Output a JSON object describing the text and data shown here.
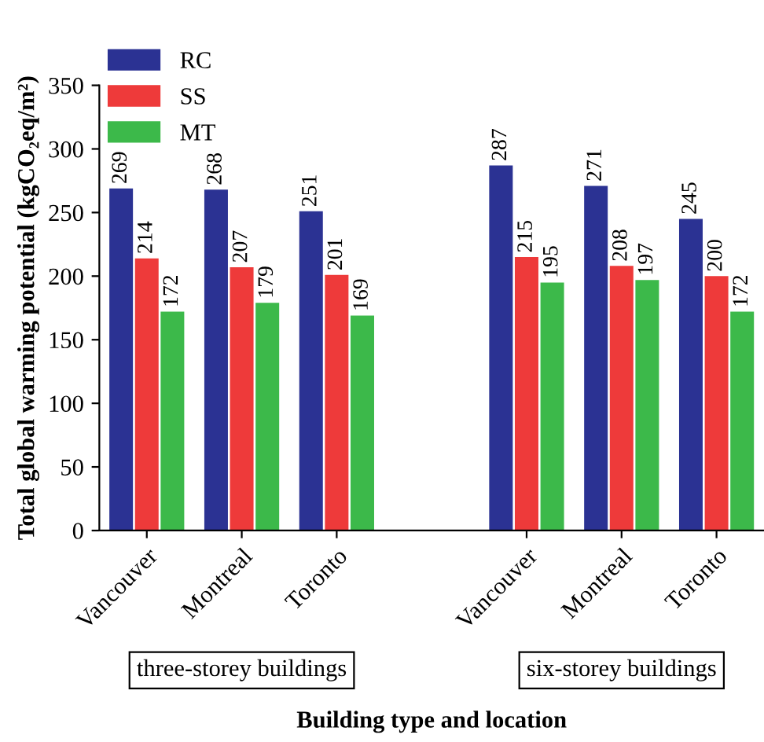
{
  "chart_data": {
    "type": "bar",
    "xlabel": "Building type and location",
    "ylabel": "Total global warming potential (kgCO₂eq/m²)",
    "categories": [
      "Vancouver",
      "Montreal",
      "Toronto",
      null,
      "Vancouver",
      "Montreal",
      "Toronto"
    ],
    "series": [
      {
        "name": "RC",
        "color": "#2b3293",
        "values": [
          269,
          268,
          251,
          null,
          287,
          271,
          245
        ]
      },
      {
        "name": "SS",
        "color": "#ee3a3a",
        "values": [
          214,
          207,
          201,
          null,
          215,
          208,
          200
        ]
      },
      {
        "name": "MT",
        "color": "#3cb94a",
        "values": [
          172,
          179,
          169,
          null,
          195,
          197,
          172
        ]
      }
    ],
    "ylim": [
      0,
      350
    ],
    "yticks": [
      0,
      50,
      100,
      150,
      200,
      250,
      300,
      350
    ],
    "data_labels": true,
    "grid": false,
    "legend": "top left",
    "annotations": [
      "three-storey buildings",
      "six-storey buildings"
    ]
  }
}
